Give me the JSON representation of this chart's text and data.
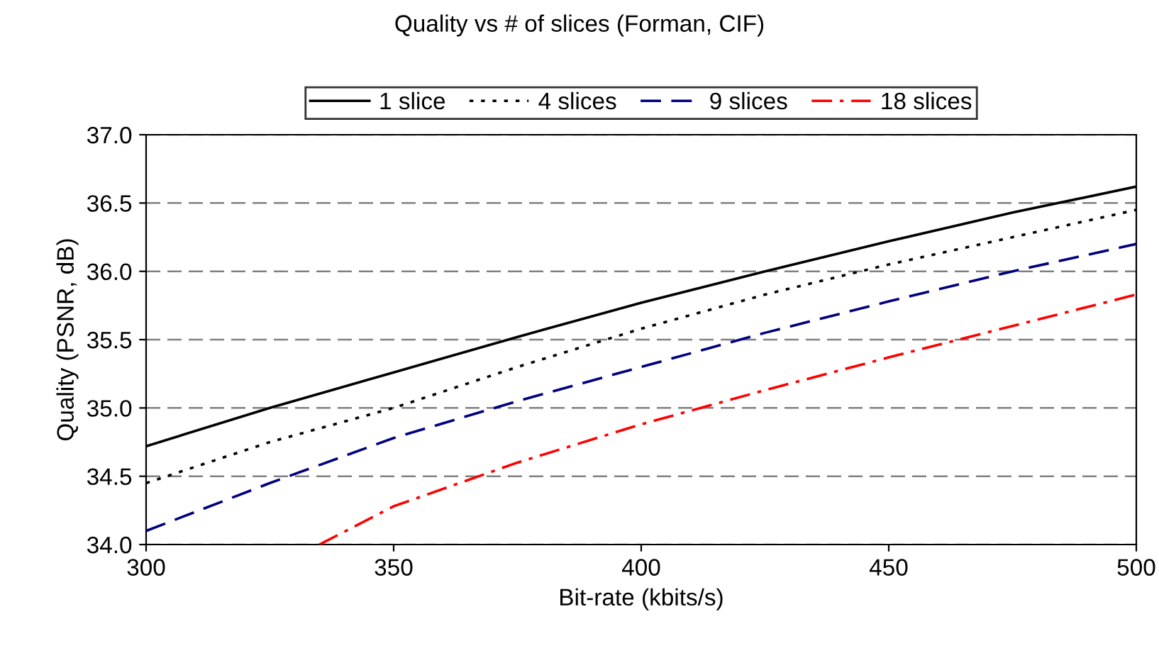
{
  "chart_data": {
    "type": "line",
    "title": "Quality vs # of slices (Forman, CIF)",
    "xlabel": "Bit-rate (kbits/s)",
    "ylabel": "Quality (PSNR, dB)",
    "x": [
      300,
      325,
      350,
      375,
      400,
      425,
      450,
      475,
      500
    ],
    "series": [
      {
        "name": "1 slice",
        "color": "#000000",
        "line_style": "solid",
        "values": [
          34.72,
          35.0,
          35.26,
          35.52,
          35.77,
          36.0,
          36.22,
          36.43,
          36.62
        ]
      },
      {
        "name": "4 slices",
        "color": "#000000",
        "line_style": "dotted",
        "values": [
          34.45,
          34.75,
          35.0,
          35.3,
          35.58,
          35.83,
          36.05,
          36.25,
          36.45
        ]
      },
      {
        "name": "9 slices",
        "color": "#000080",
        "line_style": "dashed",
        "values": [
          34.1,
          34.45,
          34.78,
          35.05,
          35.3,
          35.55,
          35.78,
          36.0,
          36.2
        ]
      },
      {
        "name": "18 slices",
        "color": "#ff0000",
        "line_style": "dashdot",
        "x": [
          335,
          350,
          375,
          400,
          425,
          450,
          475,
          500
        ],
        "values": [
          34.0,
          34.28,
          34.6,
          34.88,
          35.13,
          35.37,
          35.6,
          35.83
        ]
      }
    ],
    "xlim": [
      300,
      500
    ],
    "xticks": [
      300,
      350,
      400,
      450,
      500
    ],
    "ylim": [
      34.0,
      37.0
    ],
    "yticks": [
      {
        "value": 34.0,
        "label": "34.0"
      },
      {
        "value": 34.5,
        "label": "34.5"
      },
      {
        "value": 35.0,
        "label": "35.0"
      },
      {
        "value": 35.5,
        "label": "35.5"
      },
      {
        "value": 36.0,
        "label": "36.0"
      },
      {
        "value": 36.5,
        "label": "36.5"
      },
      {
        "value": 37.0,
        "label": "37.0"
      }
    ],
    "grid": "y",
    "legend": "top",
    "marker": "none"
  }
}
